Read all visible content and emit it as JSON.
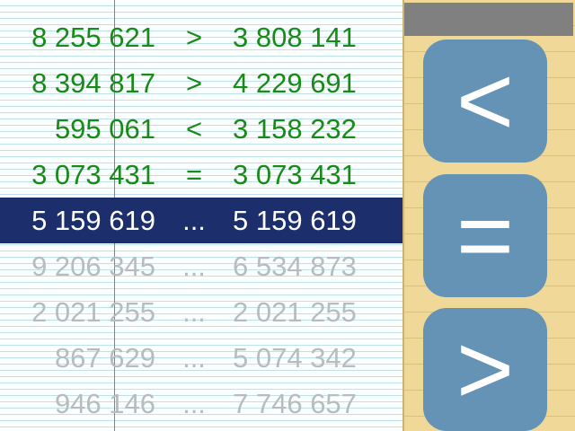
{
  "rows": [
    {
      "left": "8 255 621",
      "op": ">",
      "right": "3 808 141",
      "state": "done"
    },
    {
      "left": "8 394 817",
      "op": ">",
      "right": "4 229 691",
      "state": "done"
    },
    {
      "left": "595 061",
      "op": "<",
      "right": "3 158 232",
      "state": "done"
    },
    {
      "left": "3 073 431",
      "op": "=",
      "right": "3 073 431",
      "state": "done"
    },
    {
      "left": "5 159 619",
      "op": "...",
      "right": "5 159 619",
      "state": "current"
    },
    {
      "left": "9 206 345",
      "op": "...",
      "right": "6 534 873",
      "state": "pending"
    },
    {
      "left": "2 021 255",
      "op": "...",
      "right": "2 021 255",
      "state": "pending"
    },
    {
      "left": "867 629",
      "op": "...",
      "right": "5 074 342",
      "state": "pending"
    },
    {
      "left": "946 146",
      "op": "...",
      "right": "7 746 657",
      "state": "pending"
    }
  ],
  "buttons": {
    "less": "<",
    "equal": "=",
    "greater": ">"
  },
  "colors": {
    "done_text": "#178a17",
    "current_bg": "#1c2e6b",
    "pending_text": "#b6bcbf",
    "button_bg": "#6493b5",
    "panel_bg": "#f0d998",
    "margin_line": "#e85a5a"
  }
}
